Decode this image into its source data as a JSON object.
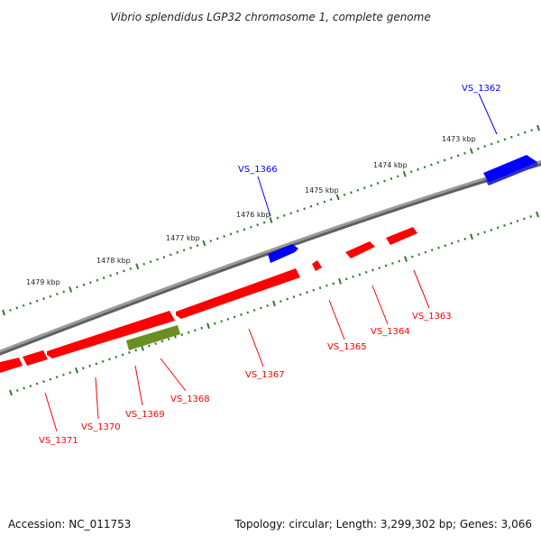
{
  "title": "Vibrio splendidus LGP32 chromosome 1, complete genome",
  "footer": {
    "accession": "Accession: NC_011753",
    "summary": "Topology: circular; Length: 3,299,302 bp; Genes: 3,066"
  },
  "colors": {
    "backbone": "#8a8a8a",
    "tick": "#2e7d2e",
    "reverse_gene": "#ff0000",
    "forward_gene": "#0000ff",
    "other_gene": "#6b8e23"
  },
  "scale_labels": [
    "1473 kbp",
    "1474 kbp",
    "1475 kbp",
    "1476 kbp",
    "1477 kbp",
    "1478 kbp",
    "1479 kbp"
  ],
  "genes": [
    {
      "label": "VS_1362",
      "strand": "forward",
      "color": "#0000ff"
    },
    {
      "label": "VS_1363",
      "strand": "reverse",
      "color": "#ff0000"
    },
    {
      "label": "VS_1364",
      "strand": "reverse",
      "color": "#ff0000"
    },
    {
      "label": "VS_1365",
      "strand": "reverse",
      "color": "#ff0000"
    },
    {
      "label": "VS_1366",
      "strand": "forward",
      "color": "#0000ff"
    },
    {
      "label": "VS_1367",
      "strand": "reverse",
      "color": "#ff0000"
    },
    {
      "label": "VS_1368",
      "strand": "reverse",
      "color": "#6b8e23"
    },
    {
      "label": "VS_1369",
      "strand": "reverse",
      "color": "#ff0000"
    },
    {
      "label": "VS_1370",
      "strand": "reverse",
      "color": "#ff0000"
    },
    {
      "label": "VS_1371",
      "strand": "reverse",
      "color": "#ff0000"
    }
  ]
}
